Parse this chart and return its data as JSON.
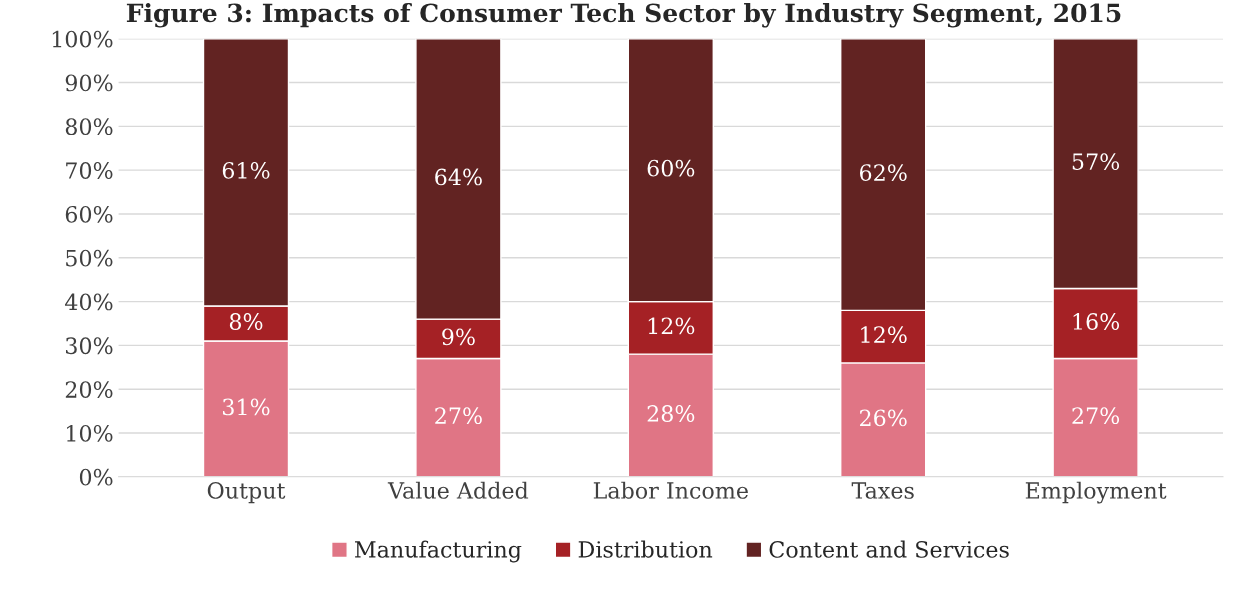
{
  "chart_data": {
    "type": "bar",
    "stacked": true,
    "title": "Figure 3: Impacts of Consumer Tech Sector by Industry Segment, 2015",
    "categories": [
      "Output",
      "Value Added",
      "Labor Income",
      "Taxes",
      "Employment"
    ],
    "series": [
      {
        "name": "Manufacturing",
        "color": "#e07585",
        "values": [
          31,
          27,
          28,
          26,
          27
        ],
        "value_labels": [
          "31%",
          "27%",
          "28%",
          "26%",
          "27%"
        ]
      },
      {
        "name": "Distribution",
        "color": "#a52125",
        "values": [
          8,
          9,
          12,
          12,
          16
        ],
        "value_labels": [
          "8%",
          "9%",
          "12%",
          "12%",
          "16%"
        ]
      },
      {
        "name": "Content and Services",
        "color": "#622322",
        "values": [
          61,
          64,
          60,
          62,
          57
        ],
        "value_labels": [
          "61%",
          "64%",
          "60%",
          "62%",
          "57%"
        ]
      }
    ],
    "ylim": [
      0,
      100
    ],
    "yticks": [
      {
        "value": 0,
        "label": "0%"
      },
      {
        "value": 10,
        "label": "10%"
      },
      {
        "value": 20,
        "label": "20%"
      },
      {
        "value": 30,
        "label": "30%"
      },
      {
        "value": 40,
        "label": "40%"
      },
      {
        "value": 50,
        "label": "50%"
      },
      {
        "value": 60,
        "label": "60%"
      },
      {
        "value": 70,
        "label": "70%"
      },
      {
        "value": 80,
        "label": "80%"
      },
      {
        "value": 90,
        "label": "90%"
      },
      {
        "value": 100,
        "label": "100%"
      }
    ],
    "grid": "y",
    "legend": "bottom"
  }
}
